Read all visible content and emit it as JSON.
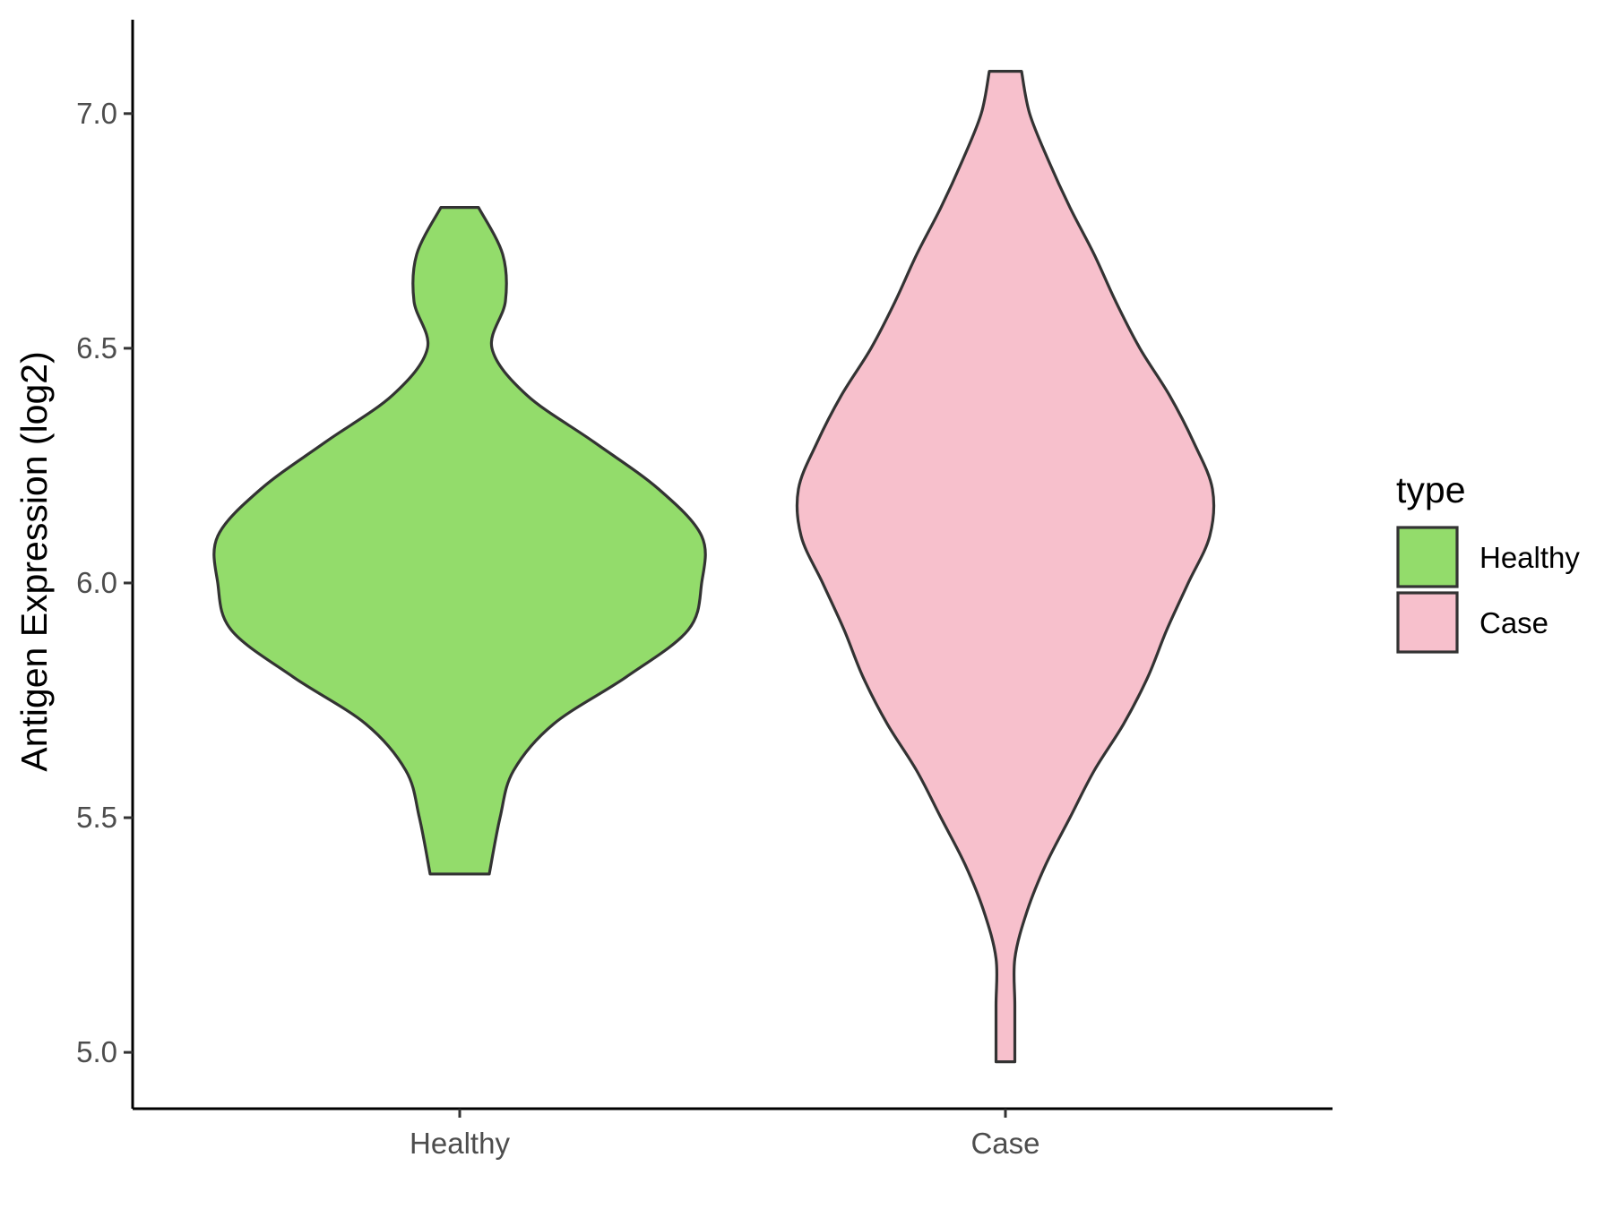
{
  "chart_data": {
    "type": "violin",
    "ylabel": "Antigen Expression (log2)",
    "xlabel": "",
    "ylim": [
      4.88,
      7.2
    ],
    "yticks": [
      5.0,
      5.5,
      6.0,
      6.5,
      7.0
    ],
    "ytick_labels": [
      "5.0",
      "5.5",
      "6.0",
      "6.5",
      "7.0"
    ],
    "categories": [
      "Healthy",
      "Case"
    ],
    "grid": false,
    "legend": {
      "title": "type",
      "placement": "right",
      "entries": [
        {
          "label": "Healthy",
          "color": "#93dc6b"
        },
        {
          "label": "Case",
          "color": "#f7c0cc"
        }
      ]
    },
    "outline_color": "#333333",
    "series": [
      {
        "category": "Healthy",
        "color": "#93dc6b",
        "min": 5.38,
        "max": 6.8,
        "density_profile": [
          [
            5.38,
            0.11
          ],
          [
            5.5,
            0.15
          ],
          [
            5.6,
            0.2
          ],
          [
            5.7,
            0.35
          ],
          [
            5.8,
            0.62
          ],
          [
            5.9,
            0.85
          ],
          [
            6.0,
            0.9
          ],
          [
            6.1,
            0.9
          ],
          [
            6.2,
            0.74
          ],
          [
            6.3,
            0.5
          ],
          [
            6.4,
            0.25
          ],
          [
            6.5,
            0.12
          ],
          [
            6.6,
            0.17
          ],
          [
            6.7,
            0.16
          ],
          [
            6.8,
            0.07
          ]
        ]
      },
      {
        "category": "Case",
        "color": "#f7c0cc",
        "min": 4.98,
        "max": 7.09,
        "density_profile": [
          [
            4.98,
            0.035
          ],
          [
            5.1,
            0.035
          ],
          [
            5.2,
            0.035
          ],
          [
            5.3,
            0.08
          ],
          [
            5.4,
            0.15
          ],
          [
            5.5,
            0.24
          ],
          [
            5.6,
            0.33
          ],
          [
            5.7,
            0.44
          ],
          [
            5.8,
            0.53
          ],
          [
            5.9,
            0.6
          ],
          [
            6.0,
            0.68
          ],
          [
            6.1,
            0.76
          ],
          [
            6.2,
            0.77
          ],
          [
            6.3,
            0.7
          ],
          [
            6.4,
            0.61
          ],
          [
            6.5,
            0.5
          ],
          [
            6.6,
            0.41
          ],
          [
            6.7,
            0.33
          ],
          [
            6.8,
            0.24
          ],
          [
            6.9,
            0.16
          ],
          [
            7.0,
            0.09
          ],
          [
            7.09,
            0.06
          ]
        ]
      }
    ]
  }
}
